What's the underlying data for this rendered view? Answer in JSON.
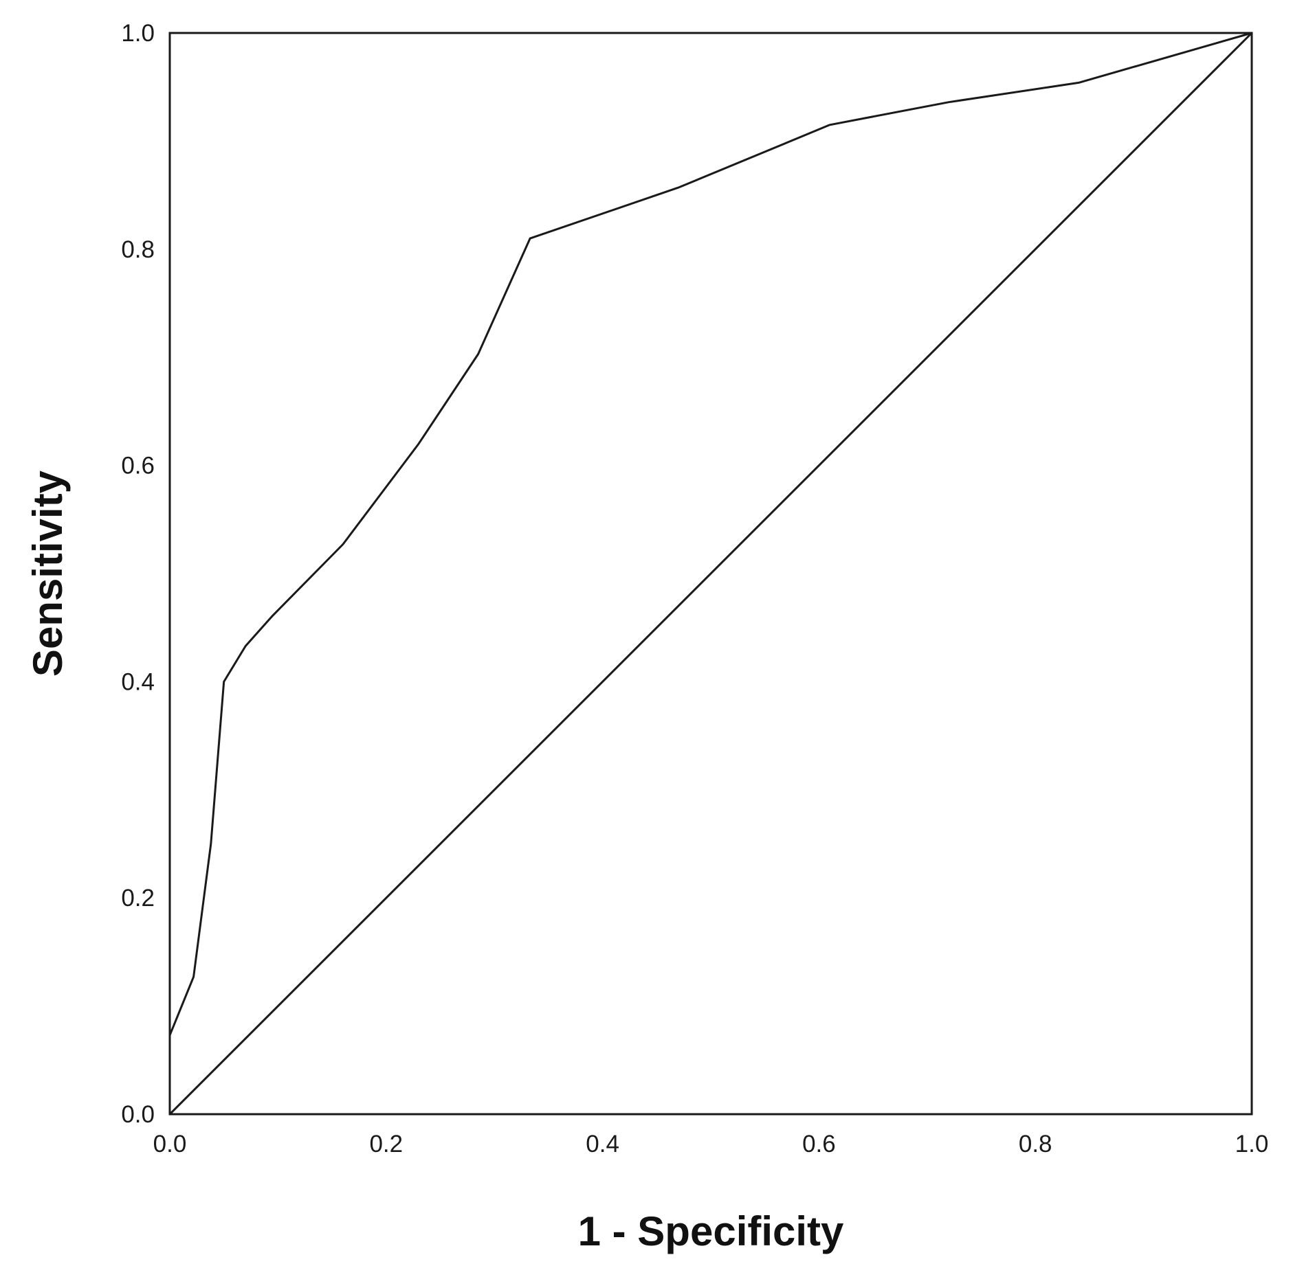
{
  "chart_data": {
    "type": "line",
    "title": "",
    "xlabel": "1 - Specificity",
    "ylabel": "Sensitivity",
    "xlim": [
      0.0,
      1.0
    ],
    "ylim": [
      0.0,
      1.0
    ],
    "x_ticks": [
      "0.0",
      "0.2",
      "0.4",
      "0.6",
      "0.8",
      "1.0"
    ],
    "y_ticks": [
      "0.0",
      "0.2",
      "0.4",
      "0.6",
      "0.8",
      "1.0"
    ],
    "grid": false,
    "legend": "none",
    "line_color": "#1a1a1a",
    "series": [
      {
        "x": [
          0.0,
          0.0,
          0.022,
          0.038,
          0.05,
          0.07,
          0.095,
          0.16,
          0.23,
          0.285,
          0.333,
          0.47,
          0.61,
          0.72,
          0.84,
          1.0
        ],
        "y": [
          0.0,
          0.073,
          0.127,
          0.25,
          0.4,
          0.433,
          0.461,
          0.527,
          0.62,
          0.703,
          0.81,
          0.857,
          0.915,
          0.936,
          0.954,
          1.0
        ]
      },
      {
        "x": [
          0.0,
          1.0
        ],
        "y": [
          0.0,
          1.0
        ]
      }
    ]
  }
}
